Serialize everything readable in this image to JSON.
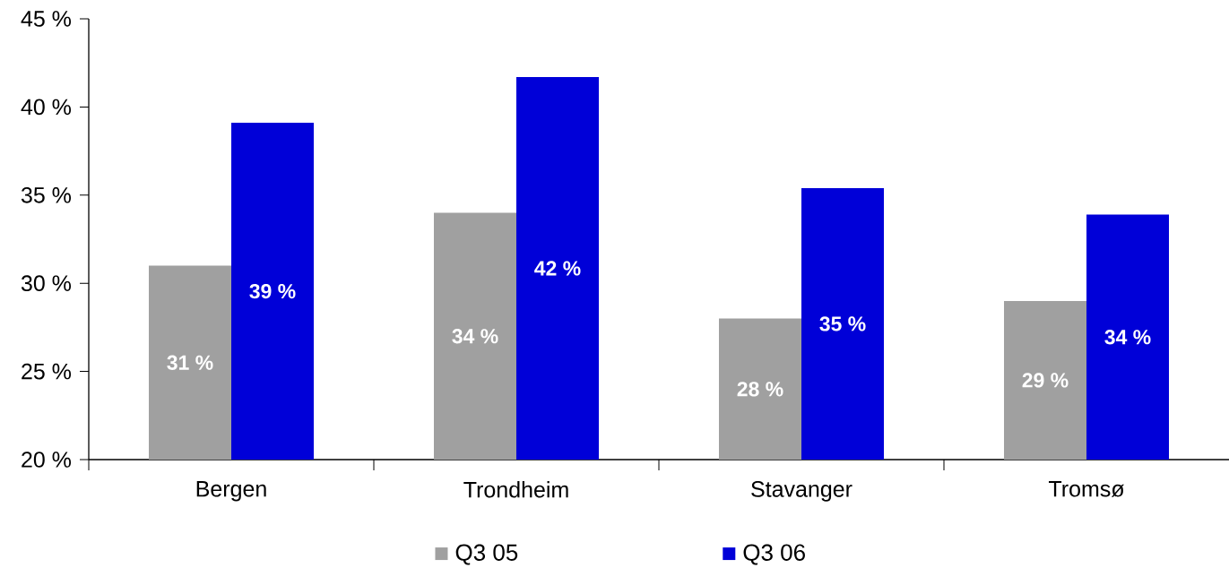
{
  "chart_data": {
    "type": "bar",
    "categories": [
      "Bergen",
      "Trondheim",
      "Stavanger",
      "Tromsø"
    ],
    "series": [
      {
        "name": "Q3 05",
        "color": "#a0a0a0",
        "values": [
          31.0,
          34.0,
          28.0,
          29.0
        ],
        "value_labels": [
          "31 %",
          "34 %",
          "28 %",
          "29 %"
        ]
      },
      {
        "name": "Q3 06",
        "color": "#0000d8",
        "values": [
          39.1,
          41.7,
          35.4,
          33.9
        ],
        "value_labels": [
          "39 %",
          "42 %",
          "35 %",
          "34 %"
        ]
      }
    ],
    "ylim": [
      20,
      45
    ],
    "yticks": [
      {
        "value": 20,
        "label": "20 %"
      },
      {
        "value": 25,
        "label": "25 %"
      },
      {
        "value": 30,
        "label": "30 %"
      },
      {
        "value": 35,
        "label": "35 %"
      },
      {
        "value": 40,
        "label": "40 %"
      },
      {
        "value": 45,
        "label": "45 %"
      }
    ],
    "legend": "bottom"
  }
}
